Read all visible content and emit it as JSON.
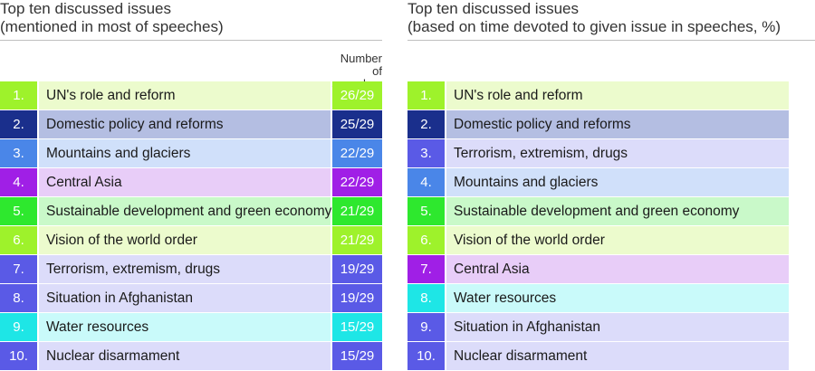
{
  "chart_data": [
    {
      "type": "table",
      "title": "Top ten discussed issues",
      "subtitle": "(mentioned in most of speeches)",
      "column_header": "Number of speeches",
      "column_header_lines": [
        "Number",
        "of speeches"
      ],
      "rows": [
        {
          "rank": "1.",
          "issue": "UN's role and reform",
          "count": "26/29",
          "numerator": 26,
          "denominator": 29,
          "num_color": "#9ef22b",
          "label_color": "#ecfbcd",
          "count_color": "#9ef22b"
        },
        {
          "rank": "2.",
          "issue": "Domestic policy and reforms",
          "count": "25/29",
          "numerator": 25,
          "denominator": 29,
          "num_color": "#1a2f8c",
          "label_color": "#b4bee2",
          "count_color": "#1a2f8c"
        },
        {
          "rank": "3.",
          "issue": "Mountains and glaciers",
          "count": "22/29",
          "numerator": 22,
          "denominator": 29,
          "num_color": "#4a86e8",
          "label_color": "#d0e0fa",
          "count_color": "#4a86e8"
        },
        {
          "rank": "4.",
          "issue": "Central Asia",
          "count": "22/29",
          "numerator": 22,
          "denominator": 29,
          "num_color": "#a01fe6",
          "label_color": "#e8cdf8",
          "count_color": "#a01fe6"
        },
        {
          "rank": "5.",
          "issue": "Sustainable development and green economy",
          "count": "21/29",
          "numerator": 21,
          "denominator": 29,
          "num_color": "#2ee82e",
          "label_color": "#c9f9c9",
          "count_color": "#2ee82e"
        },
        {
          "rank": "6.",
          "issue": "Vision of the world order",
          "count": "21/29",
          "numerator": 21,
          "denominator": 29,
          "num_color": "#9ef22b",
          "label_color": "#ecfbcd",
          "count_color": "#9ef22b"
        },
        {
          "rank": "7.",
          "issue": "Terrorism, extremism, drugs",
          "count": "19/29",
          "numerator": 19,
          "denominator": 29,
          "num_color": "#5a5ae6",
          "label_color": "#dcdcfa",
          "count_color": "#5a5ae6"
        },
        {
          "rank": "8.",
          "issue": "Situation in Afghanistan",
          "count": "19/29",
          "numerator": 19,
          "denominator": 29,
          "num_color": "#5a5ae6",
          "label_color": "#dcdcfa",
          "count_color": "#5a5ae6"
        },
        {
          "rank": "9.",
          "issue": "Water resources",
          "count": "15/29",
          "numerator": 15,
          "denominator": 29,
          "num_color": "#1ee6e6",
          "label_color": "#c9fafa",
          "count_color": "#1ee6e6"
        },
        {
          "rank": "10.",
          "issue": "Nuclear disarmament",
          "count": "15/29",
          "numerator": 15,
          "denominator": 29,
          "num_color": "#5a5ae6",
          "label_color": "#dcdcfa",
          "count_color": "#5a5ae6"
        }
      ]
    },
    {
      "type": "table",
      "title": "Top ten discussed issues",
      "subtitle": "(based on time devoted to given issue in speeches, %)",
      "rows": [
        {
          "rank": "1.",
          "issue": "UN's role and reform",
          "num_color": "#9ef22b",
          "label_color": "#ecfbcd"
        },
        {
          "rank": "2.",
          "issue": "Domestic policy and reforms",
          "num_color": "#1a2f8c",
          "label_color": "#b4bee2"
        },
        {
          "rank": "3.",
          "issue": "Terrorism, extremism, drugs",
          "num_color": "#5a5ae6",
          "label_color": "#dcdcfa"
        },
        {
          "rank": "4.",
          "issue": "Mountains and glaciers",
          "num_color": "#4a86e8",
          "label_color": "#d0e0fa"
        },
        {
          "rank": "5.",
          "issue": "Sustainable development and green economy",
          "num_color": "#2ee82e",
          "label_color": "#c9f9c9"
        },
        {
          "rank": "6.",
          "issue": "Vision of the world order",
          "num_color": "#9ef22b",
          "label_color": "#ecfbcd"
        },
        {
          "rank": "7.",
          "issue": "Central Asia",
          "num_color": "#a01fe6",
          "label_color": "#e8cdf8"
        },
        {
          "rank": "8.",
          "issue": "Water resources",
          "num_color": "#1ee6e6",
          "label_color": "#c9fafa"
        },
        {
          "rank": "9.",
          "issue": "Situation in Afghanistan",
          "num_color": "#5a5ae6",
          "label_color": "#dcdcfa"
        },
        {
          "rank": "10.",
          "issue": "Nuclear disarmament",
          "num_color": "#5a5ae6",
          "label_color": "#dcdcfa"
        }
      ]
    }
  ]
}
